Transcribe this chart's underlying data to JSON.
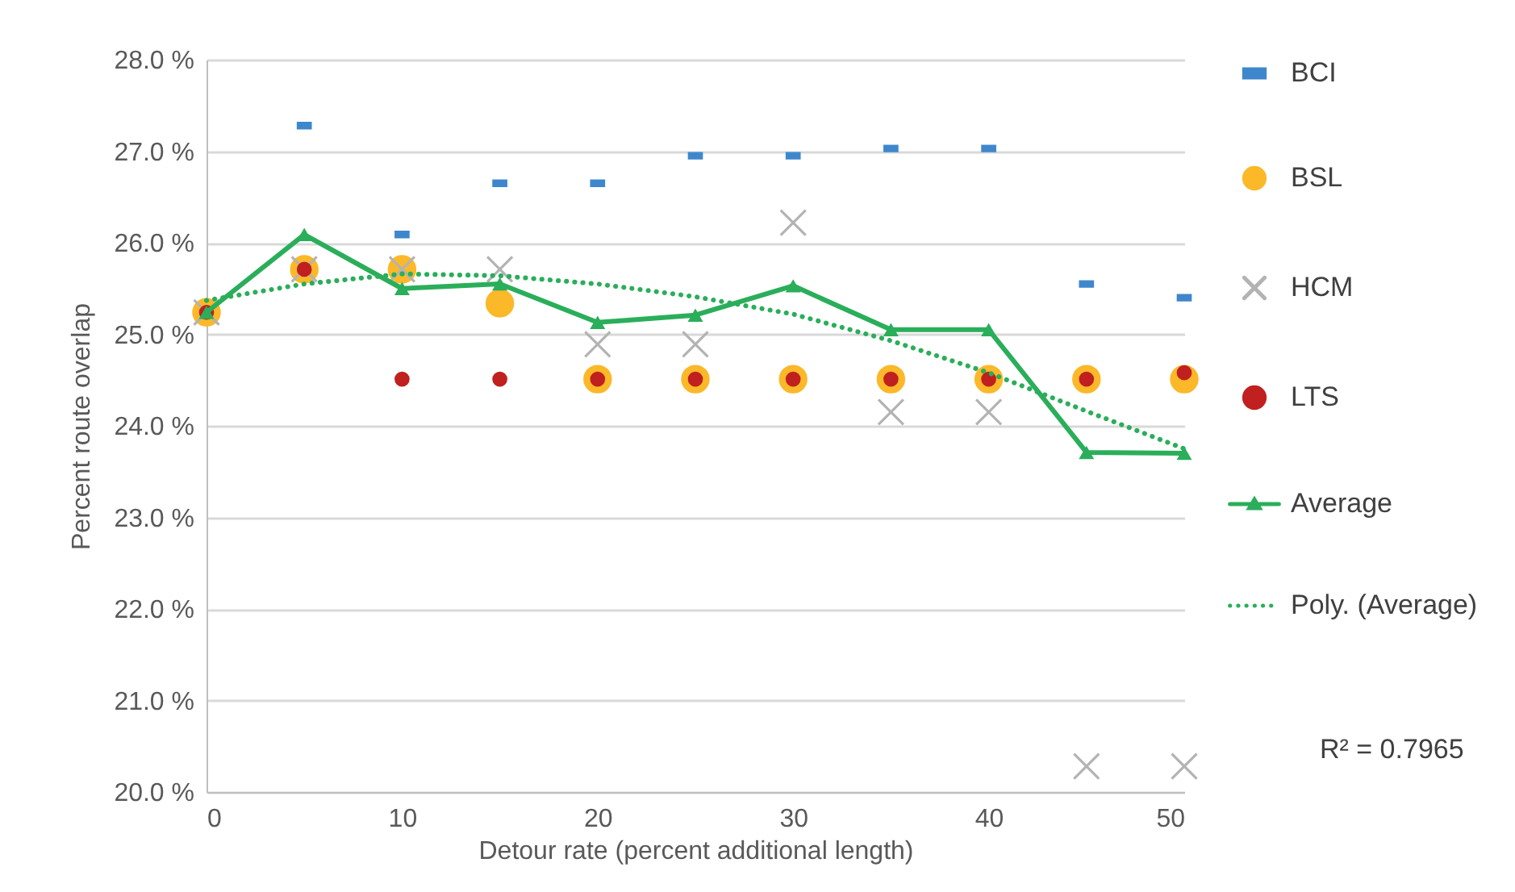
{
  "chart_data": {
    "type": "scatter",
    "xlabel": "Detour rate (percent additional length)",
    "ylabel": "Percent route overlap",
    "x": [
      0,
      5,
      10,
      15,
      20,
      25,
      30,
      35,
      40,
      45,
      50
    ],
    "series": [
      {
        "name": "BCI",
        "marker": "square",
        "color": "#3f87cc",
        "values": [
          null,
          27.28,
          26.09,
          26.65,
          26.65,
          26.95,
          26.95,
          27.03,
          27.03,
          25.55,
          25.4
        ]
      },
      {
        "name": "BSL",
        "marker": "circle",
        "color": "#fbb829",
        "values": [
          25.24,
          25.71,
          25.71,
          25.34,
          24.51,
          24.51,
          24.51,
          24.51,
          24.51,
          24.51,
          24.51
        ]
      },
      {
        "name": "HCM",
        "marker": "cross",
        "color": "#b3b3b3",
        "values": [
          25.24,
          25.71,
          25.71,
          25.71,
          24.89,
          24.89,
          26.22,
          24.15,
          24.15,
          20.28,
          20.28
        ]
      },
      {
        "name": "LTS",
        "marker": "circle",
        "color": "#c0201f",
        "values": [
          25.24,
          25.71,
          24.51,
          24.51,
          24.51,
          24.51,
          24.51,
          24.51,
          24.51,
          24.51,
          24.58
        ]
      },
      {
        "name": "Average",
        "type": "line",
        "marker": "triangle",
        "line_style": "solid",
        "color": "#2aae5a",
        "values": [
          25.24,
          26.09,
          25.5,
          25.55,
          25.13,
          25.21,
          25.53,
          25.05,
          25.05,
          23.71,
          23.7
        ]
      },
      {
        "name": "Poly. (Average)",
        "type": "line",
        "marker": "none",
        "line_style": "dotted",
        "color": "#2aae5a",
        "values": [
          25.37,
          25.55,
          25.66,
          25.64,
          25.55,
          25.41,
          25.22,
          24.93,
          24.58,
          24.16,
          23.75
        ]
      }
    ],
    "xlim": [
      0,
      50
    ],
    "xticks": [
      0,
      10,
      20,
      30,
      40,
      50
    ],
    "ylim": [
      20,
      28
    ],
    "yticks": [
      {
        "value": 20,
        "label": "20.0 %"
      },
      {
        "value": 21,
        "label": "21.0 %"
      },
      {
        "value": 22,
        "label": "22.0 %"
      },
      {
        "value": 23,
        "label": "23.0 %"
      },
      {
        "value": 24,
        "label": "24.0 %"
      },
      {
        "value": 25,
        "label": "25.0 %"
      },
      {
        "value": 26,
        "label": "26.0 %"
      },
      {
        "value": 27,
        "label": "27.0 %"
      },
      {
        "value": 28,
        "label": "28.0 %"
      }
    ],
    "grid": "y",
    "legend": "right",
    "annotations": [
      "R² = 0.7965"
    ]
  }
}
